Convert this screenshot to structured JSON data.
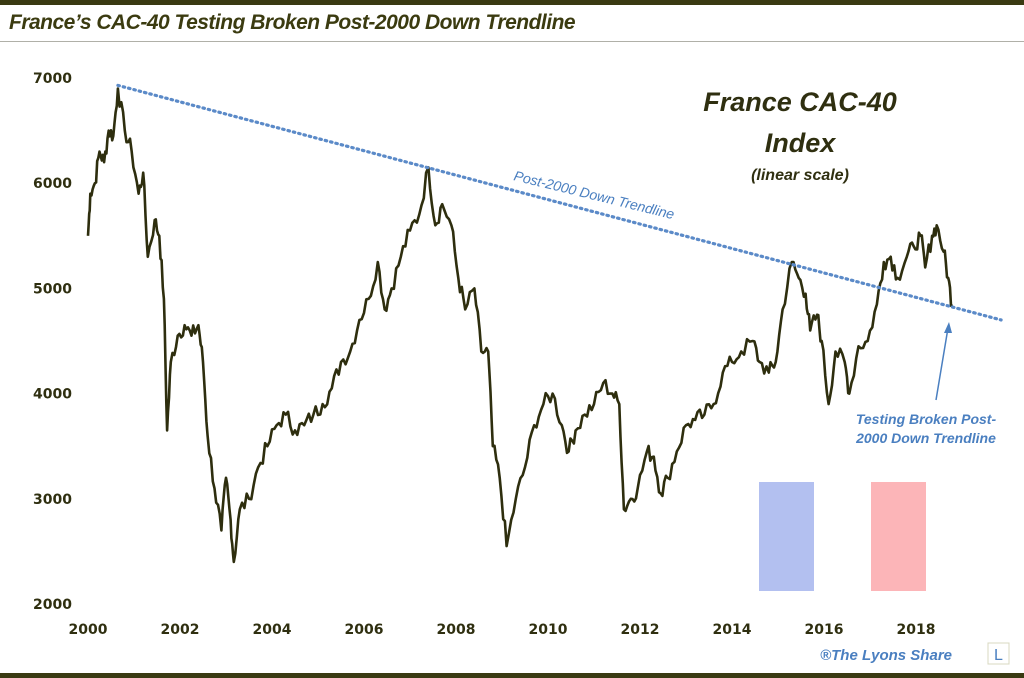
{
  "header": {
    "title": "France’s CAC-40 Testing Broken Post-2000 Down Trendline"
  },
  "footer": {
    "credit": "®The Lyons Share",
    "logo_letter": "L"
  },
  "colors": {
    "price": "#2e2e0e",
    "trend": "#5b8ac8",
    "flag_blue": "#b3c0f0",
    "flag_red": "#fcb5b8",
    "annotation": "#4a7fc0"
  },
  "chart_data": {
    "type": "line",
    "title": "France CAC-40 Index",
    "title_lines": [
      "France CAC-40",
      "Index"
    ],
    "subtitle": "(linear scale)",
    "xlabel": "",
    "ylabel": "",
    "xlim": [
      2000,
      2019.9
    ],
    "ylim": [
      2000,
      7000
    ],
    "x_ticks": [
      "2000",
      "2002",
      "2004",
      "2006",
      "2008",
      "2010",
      "2012",
      "2014",
      "2016",
      "2018"
    ],
    "y_ticks": [
      "2000",
      "3000",
      "4000",
      "5000",
      "6000",
      "7000"
    ],
    "grid": false,
    "series": [
      {
        "name": "CAC-40",
        "points": [
          [
            2000.0,
            5500
          ],
          [
            2000.05,
            5900
          ],
          [
            2000.15,
            6000
          ],
          [
            2000.25,
            6300
          ],
          [
            2000.35,
            6200
          ],
          [
            2000.45,
            6500
          ],
          [
            2000.55,
            6450
          ],
          [
            2000.65,
            6900
          ],
          [
            2000.8,
            6500
          ],
          [
            2000.95,
            6300
          ],
          [
            2001.1,
            5900
          ],
          [
            2001.2,
            6100
          ],
          [
            2001.3,
            5300
          ],
          [
            2001.45,
            5650
          ],
          [
            2001.55,
            5500
          ],
          [
            2001.65,
            4900
          ],
          [
            2001.72,
            3650
          ],
          [
            2001.8,
            4300
          ],
          [
            2001.95,
            4550
          ],
          [
            2002.1,
            4650
          ],
          [
            2002.25,
            4550
          ],
          [
            2002.4,
            4650
          ],
          [
            2002.5,
            4300
          ],
          [
            2002.6,
            3600
          ],
          [
            2002.75,
            3100
          ],
          [
            2002.9,
            2700
          ],
          [
            2003.0,
            3200
          ],
          [
            2003.1,
            2800
          ],
          [
            2003.17,
            2400
          ],
          [
            2003.3,
            2900
          ],
          [
            2003.5,
            3000
          ],
          [
            2003.7,
            3300
          ],
          [
            2003.9,
            3500
          ],
          [
            2004.1,
            3700
          ],
          [
            2004.3,
            3800
          ],
          [
            2004.5,
            3650
          ],
          [
            2004.7,
            3700
          ],
          [
            2004.9,
            3800
          ],
          [
            2005.1,
            3900
          ],
          [
            2005.3,
            4050
          ],
          [
            2005.5,
            4300
          ],
          [
            2005.7,
            4400
          ],
          [
            2005.9,
            4700
          ],
          [
            2006.1,
            4900
          ],
          [
            2006.3,
            5250
          ],
          [
            2006.45,
            4800
          ],
          [
            2006.6,
            5000
          ],
          [
            2006.8,
            5300
          ],
          [
            2007.0,
            5550
          ],
          [
            2007.2,
            5700
          ],
          [
            2007.4,
            6150
          ],
          [
            2007.55,
            5600
          ],
          [
            2007.7,
            5800
          ],
          [
            2007.9,
            5600
          ],
          [
            2008.05,
            5100
          ],
          [
            2008.2,
            4800
          ],
          [
            2008.4,
            5000
          ],
          [
            2008.55,
            4400
          ],
          [
            2008.7,
            4400
          ],
          [
            2008.8,
            3500
          ],
          [
            2008.95,
            3200
          ],
          [
            2009.1,
            2550
          ],
          [
            2009.3,
            3000
          ],
          [
            2009.5,
            3300
          ],
          [
            2009.7,
            3700
          ],
          [
            2009.9,
            3900
          ],
          [
            2010.1,
            4000
          ],
          [
            2010.3,
            3700
          ],
          [
            2010.45,
            3450
          ],
          [
            2010.6,
            3650
          ],
          [
            2010.8,
            3800
          ],
          [
            2011.0,
            3900
          ],
          [
            2011.2,
            4100
          ],
          [
            2011.4,
            4000
          ],
          [
            2011.55,
            3900
          ],
          [
            2011.65,
            2900
          ],
          [
            2011.8,
            3000
          ],
          [
            2011.95,
            3100
          ],
          [
            2012.15,
            3450
          ],
          [
            2012.3,
            3400
          ],
          [
            2012.45,
            3050
          ],
          [
            2012.6,
            3200
          ],
          [
            2012.8,
            3450
          ],
          [
            2013.0,
            3700
          ],
          [
            2013.2,
            3750
          ],
          [
            2013.4,
            3800
          ],
          [
            2013.6,
            3900
          ],
          [
            2013.8,
            4200
          ],
          [
            2014.0,
            4300
          ],
          [
            2014.2,
            4400
          ],
          [
            2014.45,
            4500
          ],
          [
            2014.6,
            4300
          ],
          [
            2014.8,
            4200
          ],
          [
            2014.95,
            4300
          ],
          [
            2015.1,
            4800
          ],
          [
            2015.3,
            5250
          ],
          [
            2015.45,
            5100
          ],
          [
            2015.6,
            4950
          ],
          [
            2015.7,
            4600
          ],
          [
            2015.85,
            4750
          ],
          [
            2015.95,
            4500
          ],
          [
            2016.1,
            3900
          ],
          [
            2016.25,
            4400
          ],
          [
            2016.45,
            4300
          ],
          [
            2016.55,
            4000
          ],
          [
            2016.75,
            4450
          ],
          [
            2016.95,
            4500
          ],
          [
            2017.15,
            4850
          ],
          [
            2017.3,
            5250
          ],
          [
            2017.45,
            5300
          ],
          [
            2017.6,
            5100
          ],
          [
            2017.8,
            5300
          ],
          [
            2017.95,
            5400
          ],
          [
            2018.1,
            5500
          ],
          [
            2018.2,
            5200
          ],
          [
            2018.35,
            5500
          ],
          [
            2018.45,
            5600
          ],
          [
            2018.6,
            5350
          ],
          [
            2018.7,
            5100
          ],
          [
            2018.78,
            4850
          ]
        ]
      }
    ],
    "trendline": {
      "name": "Post-2000 Down Trendline",
      "points": [
        [
          2000.65,
          6930
        ],
        [
          2019.85,
          4700
        ]
      ]
    },
    "annotations": [
      {
        "text": "Post-2000 Down Trendline"
      },
      {
        "text_lines": [
          "Testing Broken Post-",
          "2000 Down Trendline"
        ],
        "arrow_to": [
          2018.75,
          4850
        ]
      }
    ],
    "decorations": {
      "flag": [
        "blue",
        "white",
        "red"
      ]
    }
  }
}
